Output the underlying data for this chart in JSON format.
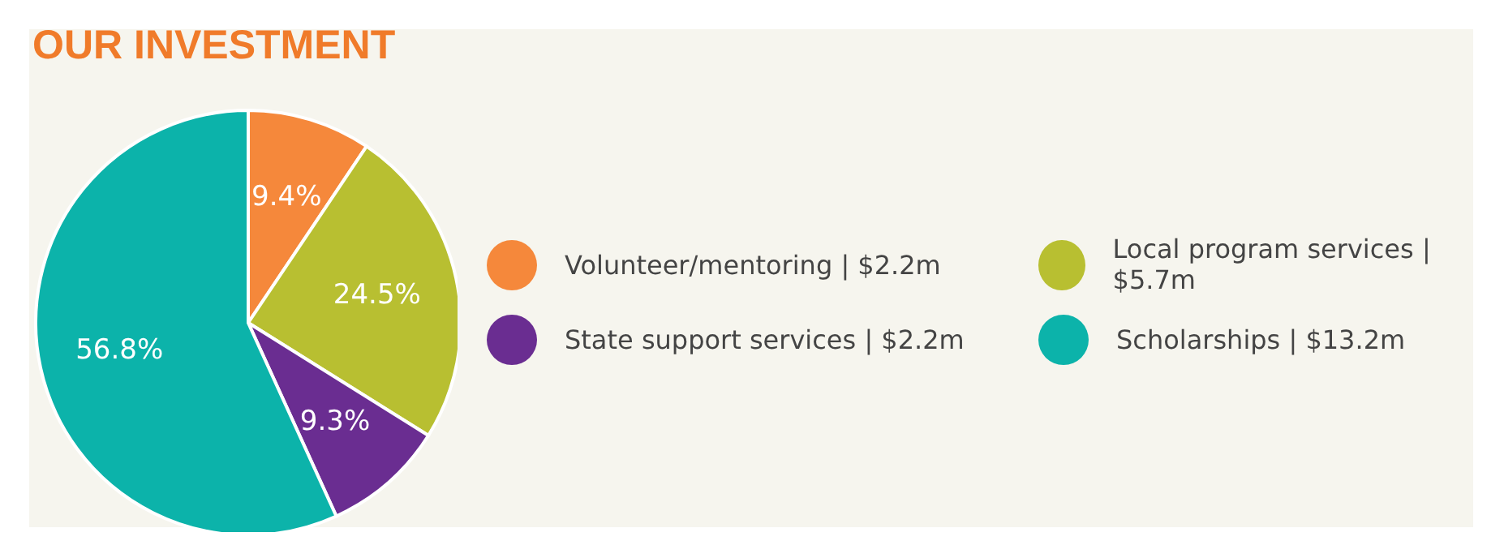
{
  "chart_data": {
    "type": "pie",
    "title": "OUR INVESTMENT",
    "categories": [
      "Volunteer/mentoring | $2.2m",
      "Local program services | $5.7m",
      "State support services | $2.2m",
      "Scholarships | $13.2m"
    ],
    "values": [
      9.4,
      24.5,
      9.3,
      56.8
    ],
    "value_labels": [
      "9.4%",
      "24.5%",
      "9.3%",
      "56.8%"
    ],
    "colors": [
      "#f5883b",
      "#b8bf31",
      "#6a2d91",
      "#0cb3aa"
    ],
    "legend": "right"
  }
}
